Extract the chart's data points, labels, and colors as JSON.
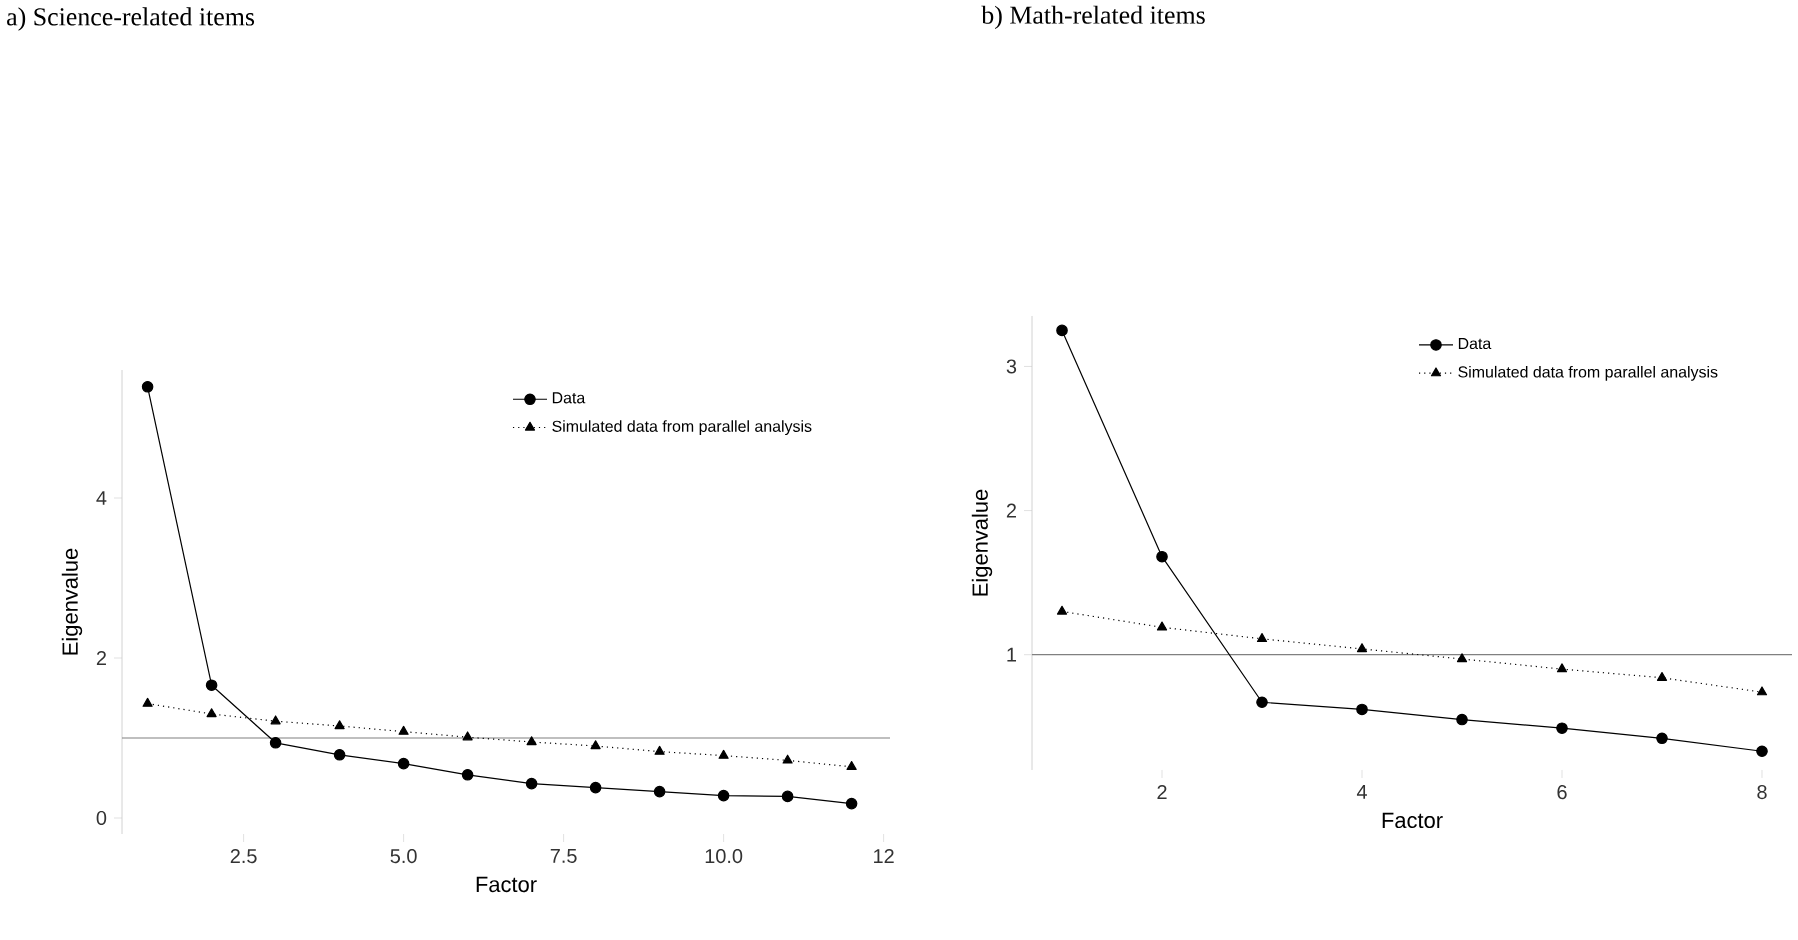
{
  "chart_data": [
    {
      "type": "line",
      "title": "a) Science-related items",
      "xlabel": "Factor",
      "ylabel": "Eigenvalue",
      "x": [
        1,
        2,
        3,
        4,
        5,
        6,
        7,
        8,
        9,
        10,
        11,
        12
      ],
      "series": [
        {
          "name": "Data",
          "color": "#000000",
          "marker": "circle",
          "line_style": "solid",
          "values": [
            5.39,
            1.66,
            0.94,
            0.79,
            0.68,
            0.54,
            0.43,
            0.38,
            0.33,
            0.28,
            0.27,
            0.18
          ]
        },
        {
          "name": "Simulated data from parallel analysis",
          "color": "#000000",
          "marker": "triangle",
          "line_style": "dotted",
          "values": [
            1.43,
            1.3,
            1.21,
            1.15,
            1.08,
            1.01,
            0.95,
            0.9,
            0.83,
            0.78,
            0.72,
            0.64
          ]
        }
      ],
      "xlim": [
        0.6,
        12.6
      ],
      "ylim": [
        -0.2,
        5.6
      ],
      "xticks": [
        {
          "value": 2.5,
          "label": "2.5"
        },
        {
          "value": 5,
          "label": "5.0"
        },
        {
          "value": 7.5,
          "label": "7.5"
        },
        {
          "value": 10,
          "label": "10.0"
        },
        {
          "value": 12.5,
          "label": "12"
        }
      ],
      "yticks": [
        0,
        2,
        4
      ],
      "ref_lines": [
        {
          "axis": "y",
          "value": 1,
          "color": "#808080"
        }
      ],
      "legend": "top right",
      "grid": false
    },
    {
      "type": "line",
      "title": "b) Math-related items",
      "xlabel": "Factor",
      "ylabel": "Eigenvalue",
      "x": [
        1,
        2,
        3,
        4,
        5,
        6,
        7,
        8
      ],
      "series": [
        {
          "name": "Data",
          "color": "#000000",
          "marker": "circle",
          "line_style": "solid",
          "values": [
            3.25,
            1.68,
            0.67,
            0.62,
            0.55,
            0.49,
            0.42,
            0.33
          ]
        },
        {
          "name": "Simulated data from parallel analysis",
          "color": "#000000",
          "marker": "triangle",
          "line_style": "dotted",
          "values": [
            1.3,
            1.19,
            1.11,
            1.04,
            0.97,
            0.9,
            0.84,
            0.74
          ]
        }
      ],
      "xlim": [
        0.7,
        8.3
      ],
      "ylim": [
        0.2,
        3.35
      ],
      "xticks": [
        2,
        4,
        6,
        8
      ],
      "yticks": [
        1,
        2,
        3
      ],
      "ref_lines": [
        {
          "axis": "y",
          "value": 1,
          "color": "#808080"
        }
      ],
      "legend": "top right",
      "grid": false
    }
  ]
}
